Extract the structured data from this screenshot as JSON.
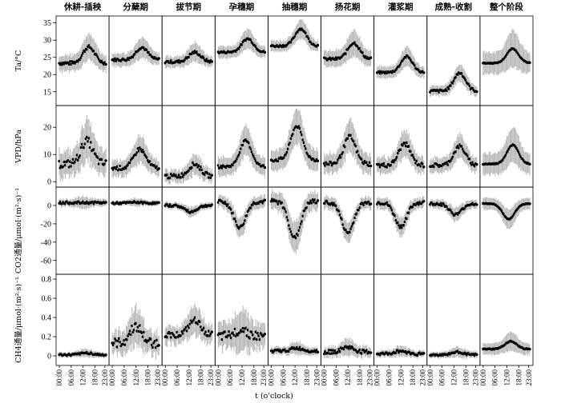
{
  "xlabel": "t (o'clock)",
  "stages": [
    "休耕-插秧",
    "分蘖期",
    "拔节期",
    "孕穗期",
    "抽穗期",
    "扬花期",
    "灌浆期",
    "成熟-收割",
    "整个阶段"
  ],
  "xticks": [
    "00:00",
    "06:00",
    "12:00",
    "18:00",
    "23:00"
  ],
  "chart_data": [
    {
      "type": "line",
      "variable": "Ta",
      "ylabel": "Ta/°C",
      "ylim": [
        11,
        37
      ],
      "yticks": [
        15,
        20,
        25,
        30,
        35
      ],
      "panels": [
        {
          "stage": "休耕-插秧",
          "base": 23.3,
          "amp": 4.7,
          "peak": 15,
          "noise": 0.5,
          "err": 3.5
        },
        {
          "stage": "分蘖期",
          "base": 24.3,
          "amp": 3.6,
          "peak": 15,
          "noise": 0.4,
          "err": 2.8
        },
        {
          "stage": "拔节期",
          "base": 23.7,
          "amp": 2.8,
          "peak": 15,
          "noise": 0.4,
          "err": 2.5
        },
        {
          "stage": "孕穗期",
          "base": 26.5,
          "amp": 3.9,
          "peak": 15,
          "noise": 0.3,
          "err": 2.6
        },
        {
          "stage": "抽穗期",
          "base": 28.3,
          "amp": 5.0,
          "peak": 15,
          "noise": 0.3,
          "err": 2.5
        },
        {
          "stage": "扬花期",
          "base": 24.5,
          "amp": 4.7,
          "peak": 15,
          "noise": 0.4,
          "err": 3.5
        },
        {
          "stage": "灌浆期",
          "base": 20.6,
          "amp": 4.6,
          "peak": 15,
          "noise": 0.3,
          "err": 2.5
        },
        {
          "stage": "成熟-收割",
          "base": 15.2,
          "amp": 5.3,
          "peak": 15,
          "noise": 0.4,
          "err": 2.3
        },
        {
          "stage": "整个阶段",
          "base": 23.3,
          "amp": 4.2,
          "peak": 15,
          "noise": 0.1,
          "err": 4.8
        }
      ]
    },
    {
      "type": "line",
      "variable": "VPD",
      "ylabel": "VPD/hPa",
      "ylim": [
        -2,
        28
      ],
      "yticks": [
        0,
        10,
        20
      ],
      "panels": [
        {
          "stage": "休耕-插秧",
          "base": 6.5,
          "amp": 8.5,
          "peak": 14,
          "noise": 1.5,
          "err": 7.0
        },
        {
          "stage": "分蘖期",
          "base": 5.0,
          "amp": 7.0,
          "peak": 14,
          "noise": 0.8,
          "err": 4.5
        },
        {
          "stage": "拔节期",
          "base": 2.0,
          "amp": 4.5,
          "peak": 15,
          "noise": 0.8,
          "err": 3.5
        },
        {
          "stage": "孕穗期",
          "base": 5.5,
          "amp": 9.5,
          "peak": 14,
          "noise": 0.5,
          "err": 5.0
        },
        {
          "stage": "抽穗期",
          "base": 8.0,
          "amp": 12.5,
          "peak": 13,
          "noise": 0.6,
          "err": 6.0
        },
        {
          "stage": "扬花期",
          "base": 6.5,
          "amp": 10.0,
          "peak": 13,
          "noise": 0.8,
          "err": 5.5
        },
        {
          "stage": "灌浆期",
          "base": 6.0,
          "amp": 8.0,
          "peak": 14,
          "noise": 0.8,
          "err": 4.5
        },
        {
          "stage": "成熟-收割",
          "base": 6.0,
          "amp": 7.0,
          "peak": 15,
          "noise": 0.7,
          "err": 4.0
        },
        {
          "stage": "整个阶段",
          "base": 6.5,
          "amp": 7.0,
          "peak": 15,
          "noise": 0.2,
          "err": 6.0
        }
      ]
    },
    {
      "type": "line",
      "variable": "CO2",
      "ylabel": "CO2通量/μmol·(m²·s)⁻¹",
      "ylim": [
        -75,
        20
      ],
      "yticks": [
        -60,
        -40,
        -20,
        0
      ],
      "panels": [
        {
          "stage": "休耕-插秧",
          "base": 3.0,
          "amp": 0.0,
          "peak": 12,
          "noise": 1.2,
          "err": 6.0
        },
        {
          "stage": "分蘖期",
          "base": 2.5,
          "amp": 1.0,
          "peak": 12,
          "noise": 1.0,
          "err": 4.0
        },
        {
          "stage": "拔节期",
          "base": 0.0,
          "amp": -7.0,
          "peak": 13,
          "noise": 1.2,
          "err": 5.0
        },
        {
          "stage": "孕穗期",
          "base": 4.0,
          "amp": -28.0,
          "peak": 11,
          "noise": 2.0,
          "err": 10.0
        },
        {
          "stage": "抽穗期",
          "base": 4.5,
          "amp": -40.0,
          "peak": 12,
          "noise": 2.5,
          "err": 15.0
        },
        {
          "stage": "扬花期",
          "base": 3.0,
          "amp": -33.0,
          "peak": 12,
          "noise": 2.0,
          "err": 10.0
        },
        {
          "stage": "灌浆期",
          "base": 3.0,
          "amp": -26.0,
          "peak": 12,
          "noise": 2.0,
          "err": 9.0
        },
        {
          "stage": "成熟-收割",
          "base": 2.0,
          "amp": -12.0,
          "peak": 13,
          "noise": 1.5,
          "err": 7.0
        },
        {
          "stage": "整个阶段",
          "base": 2.0,
          "amp": -17.0,
          "peak": 13,
          "noise": 0.3,
          "err": 10.0
        }
      ]
    },
    {
      "type": "line",
      "variable": "CH4",
      "ylabel": "CH4通量/μmol·(m²·s)⁻¹",
      "ylim": [
        -0.1,
        0.85
      ],
      "yticks": [
        0,
        0.2,
        0.4,
        0.6,
        0.8
      ],
      "panels": [
        {
          "stage": "休耕-插秧",
          "base": 0.01,
          "amp": 0.02,
          "peak": 14,
          "noise": 0.01,
          "err": 0.04
        },
        {
          "stage": "分蘖期",
          "base": 0.13,
          "amp": 0.18,
          "peak": 12,
          "noise": 0.05,
          "err": 0.18
        },
        {
          "stage": "拔节期",
          "base": 0.22,
          "amp": 0.15,
          "peak": 15,
          "noise": 0.03,
          "err": 0.14
        },
        {
          "stage": "孕穗期",
          "base": 0.2,
          "amp": 0.08,
          "peak": 12,
          "noise": 0.05,
          "err": 0.2
        },
        {
          "stage": "抽穗期",
          "base": 0.05,
          "amp": 0.03,
          "peak": 13,
          "noise": 0.015,
          "err": 0.06
        },
        {
          "stage": "扬花期",
          "base": 0.04,
          "amp": 0.05,
          "peak": 12,
          "noise": 0.02,
          "err": 0.08
        },
        {
          "stage": "灌浆期",
          "base": 0.02,
          "amp": 0.03,
          "peak": 12,
          "noise": 0.015,
          "err": 0.05
        },
        {
          "stage": "成熟-收割",
          "base": 0.01,
          "amp": 0.03,
          "peak": 14,
          "noise": 0.01,
          "err": 0.05
        },
        {
          "stage": "整个阶段",
          "base": 0.07,
          "amp": 0.08,
          "peak": 14,
          "noise": 0.005,
          "err": 0.09
        }
      ]
    }
  ]
}
